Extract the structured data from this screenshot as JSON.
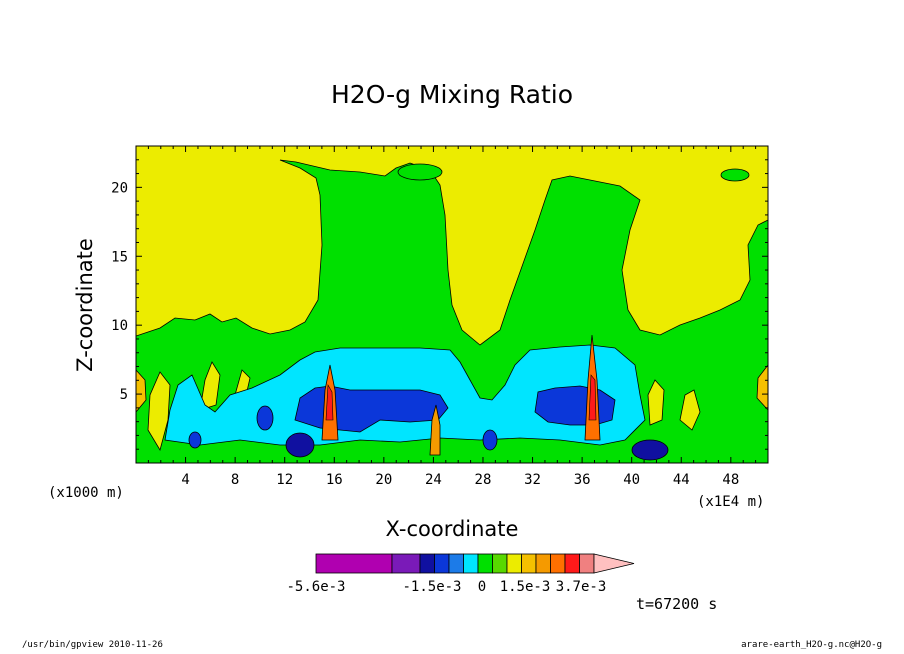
{
  "chart_data": {
    "type": "heatmap",
    "title": "H2O-g Mixing Ratio",
    "xlabel": "X-coordinate",
    "ylabel": "Z-coordinate",
    "x_unit_left": "(x1000 m)",
    "x_unit_right": "(x1E4 m)",
    "xlim": [
      0,
      51
    ],
    "ylim": [
      0,
      23
    ],
    "x_ticks": [
      4,
      8,
      12,
      16,
      20,
      24,
      28,
      32,
      36,
      40,
      44,
      48
    ],
    "y_ticks": [
      5,
      10,
      15,
      20
    ],
    "colorbar": {
      "colors": [
        "#b000b0",
        "#7a1ab8",
        "#1010a0",
        "#0b37d9",
        "#1c7be8",
        "#00e5ff",
        "#00e000",
        "#58d800",
        "#ecec00",
        "#f5c000",
        "#f59a00",
        "#ff7000",
        "#ff1a1a",
        "#f08080",
        "#ffc0c0"
      ],
      "tick_labels": [
        "-5.6e-3",
        "-1.5e-3",
        "0",
        "1.5e-3",
        "3.7e-3"
      ]
    },
    "time_label": "t=67200 s"
  },
  "footer": {
    "left": "/usr/bin/gpview   2010-11-26",
    "right": "arare-earth_H2O-g.nc@H2O-g"
  }
}
